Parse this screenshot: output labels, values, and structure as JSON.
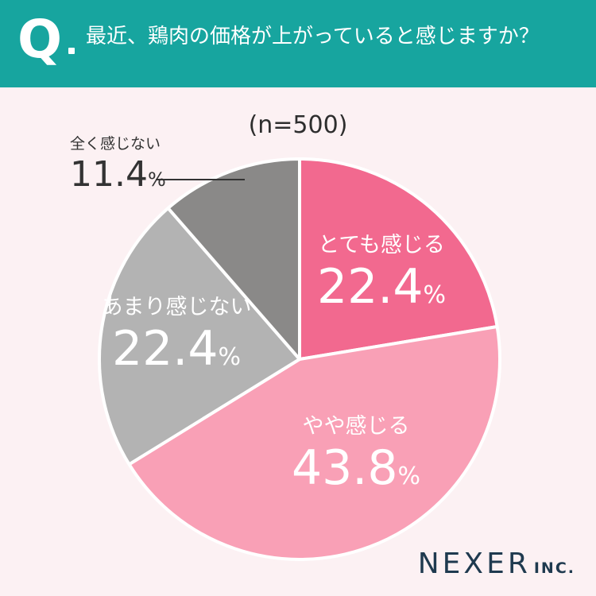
{
  "header": {
    "q_mark": "Q",
    "question": "最近、鶏肉の価格が上がっていると感じますか？"
  },
  "chart_data": {
    "type": "pie",
    "sample_label": "(n=500)",
    "slices": [
      {
        "label": "とても感じる",
        "value": 22.4,
        "color": "#f2698f"
      },
      {
        "label": "やや感じる",
        "value": 43.8,
        "color": "#f9a0b6"
      },
      {
        "label": "あまり感じない",
        "value": 22.4,
        "color": "#b3b3b3"
      },
      {
        "label": "全く感じない",
        "value": 11.4,
        "color": "#8a8988"
      }
    ],
    "value_display": [
      "22.4",
      "43.8",
      "22.4",
      "11.4"
    ],
    "unit": "%"
  },
  "branding": {
    "logo_main": "NEXER",
    "logo_sub": "INC."
  }
}
